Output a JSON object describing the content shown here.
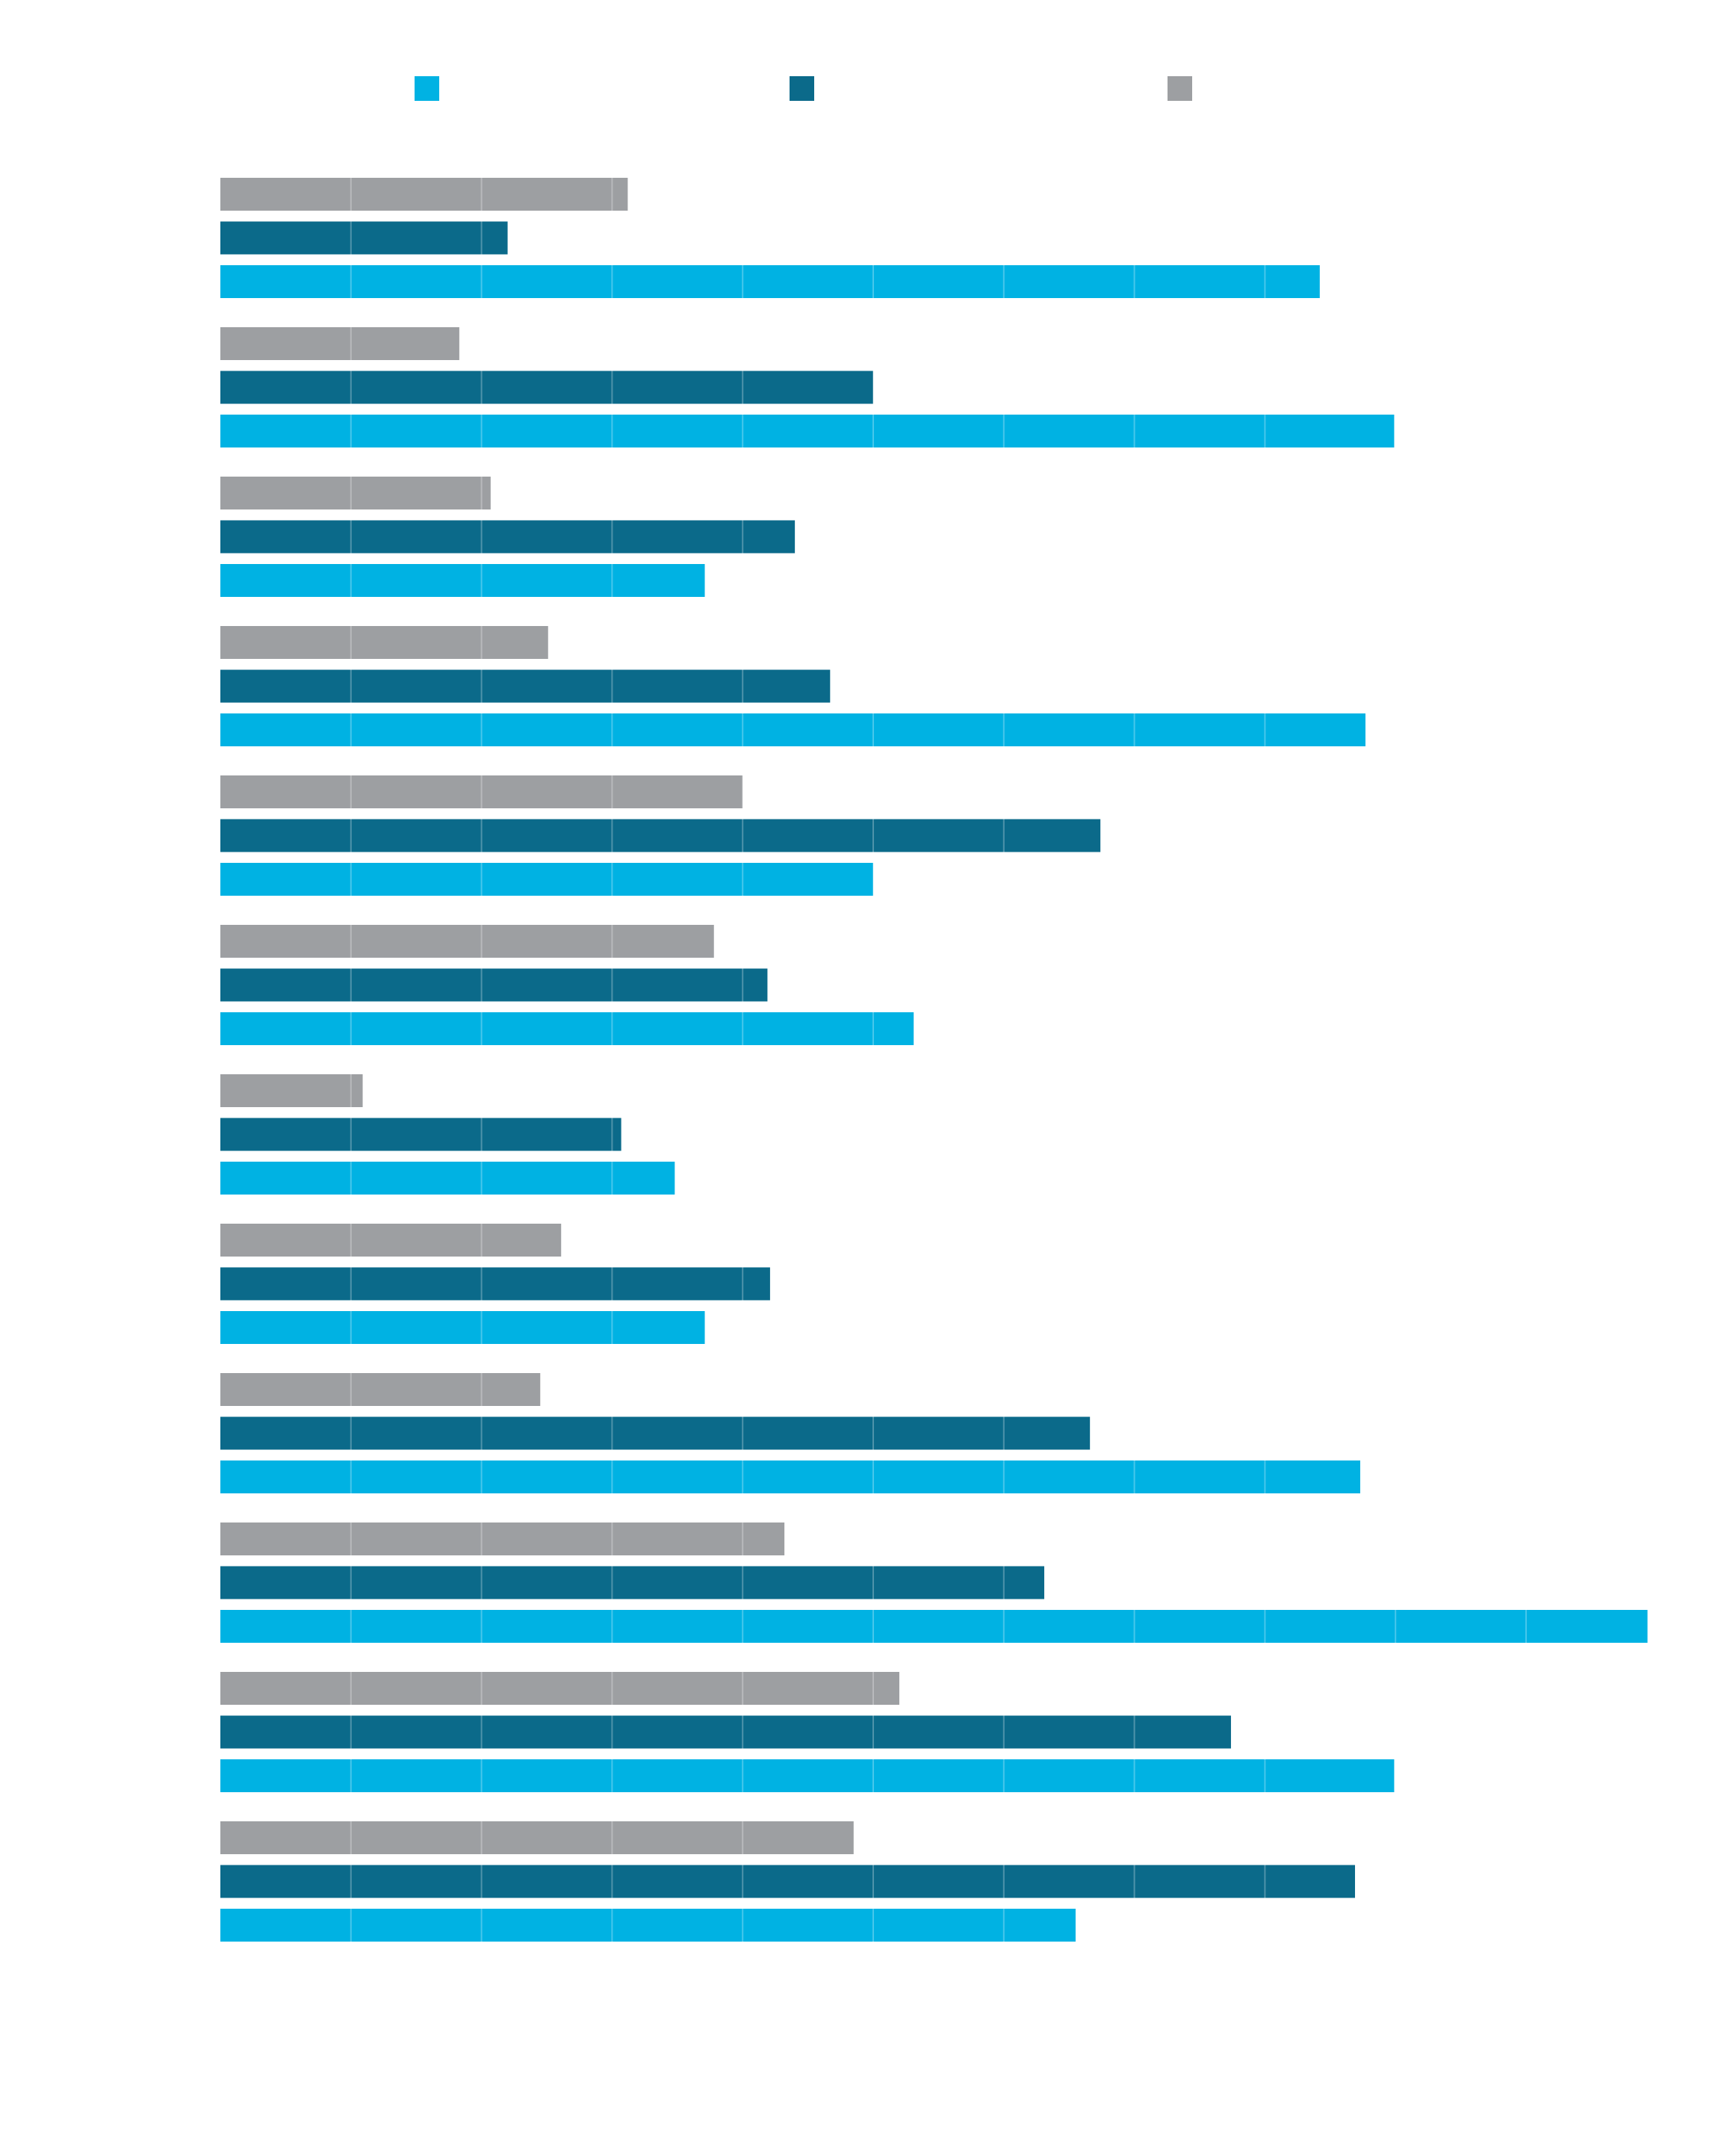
{
  "chart_data": {
    "type": "bar",
    "orientation": "horizontal",
    "title": "",
    "xlabel": "",
    "ylabel": "",
    "grid": true,
    "legend": "top",
    "xlim": [
      0,
      11
    ],
    "categories": [
      "",
      "",
      "",
      "",
      "",
      "",
      "",
      "",
      "",
      "",
      "",
      ""
    ],
    "series": [
      {
        "color": "#9d9fa2",
        "values": [
          3.12,
          1.83,
          2.07,
          2.51,
          4.0,
          3.78,
          1.09,
          2.61,
          2.45,
          4.32,
          5.2,
          4.85
        ]
      },
      {
        "color": "#0b6a8a",
        "values": [
          2.2,
          5.0,
          4.4,
          4.67,
          6.74,
          4.19,
          3.07,
          4.21,
          6.66,
          6.31,
          7.74,
          8.69
        ]
      },
      {
        "color": "#00b2e3",
        "values": [
          8.42,
          8.99,
          3.71,
          8.77,
          5.0,
          5.31,
          3.48,
          3.71,
          8.73,
          10.93,
          8.99,
          6.55
        ]
      }
    ]
  },
  "legend": {
    "items": [
      {
        "color": "#00b2e3"
      },
      {
        "color": "#0b6a8a"
      },
      {
        "color": "#9d9fa2"
      }
    ]
  }
}
